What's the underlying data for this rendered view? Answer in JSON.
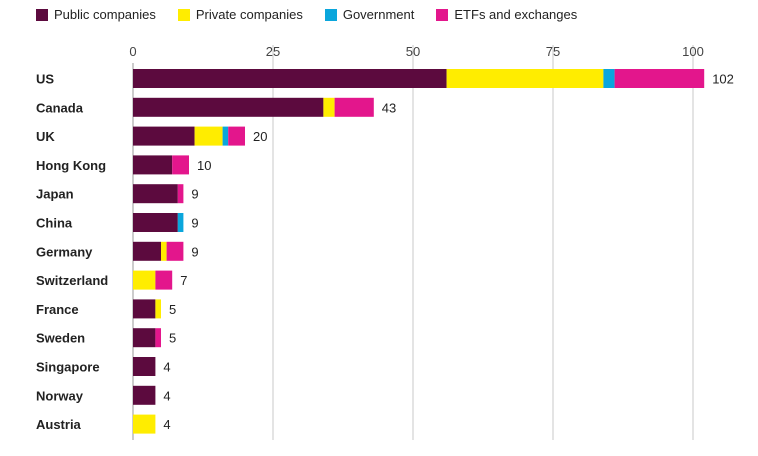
{
  "chart_data": {
    "type": "bar",
    "orientation": "horizontal",
    "stacked": true,
    "categories": [
      "US",
      "Canada",
      "UK",
      "Hong Kong",
      "Japan",
      "China",
      "Germany",
      "Switzerland",
      "France",
      "Sweden",
      "Singapore",
      "Norway",
      "Austria"
    ],
    "series": [
      {
        "name": "Public companies",
        "color": "#5c0a3e",
        "values": [
          56,
          34,
          11,
          7,
          8,
          8,
          5,
          0,
          4,
          4,
          4,
          4,
          0
        ]
      },
      {
        "name": "Private companies",
        "color": "#ffed00",
        "values": [
          28,
          2,
          5,
          0,
          0,
          0,
          1,
          4,
          1,
          0,
          0,
          0,
          4
        ]
      },
      {
        "name": "Government",
        "color": "#0aa6dc",
        "values": [
          2,
          0,
          1,
          0,
          0,
          1,
          0,
          0,
          0,
          0,
          0,
          0,
          0
        ]
      },
      {
        "name": "ETFs and exchanges",
        "color": "#e3168c",
        "values": [
          16,
          7,
          3,
          3,
          1,
          0,
          3,
          3,
          0,
          1,
          0,
          0,
          0
        ]
      }
    ],
    "totals": [
      "102",
      "43",
      "20",
      "10",
      "9",
      "9",
      "9",
      "7",
      "5",
      "5",
      "4",
      "4",
      "4"
    ],
    "xticks": [
      0,
      25,
      50,
      75,
      100
    ],
    "xlim": [
      0,
      100
    ],
    "grid": true,
    "legend": "top-left",
    "title": "",
    "xlabel": "",
    "ylabel": ""
  }
}
